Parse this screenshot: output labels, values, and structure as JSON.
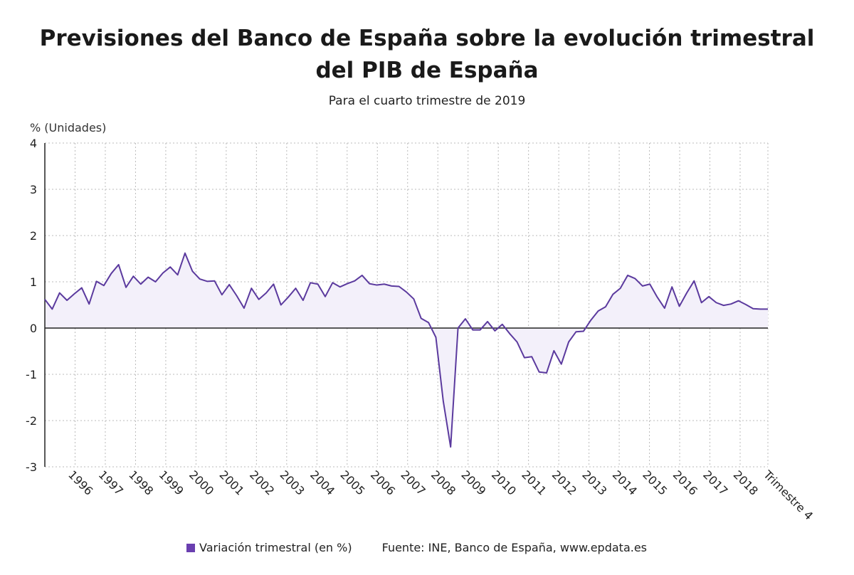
{
  "title": "Previsiones del Banco de España sobre la evolución trimestral del PIB de España",
  "subtitle": "Para el cuarto trimestre de 2019",
  "source": "Fuente: INE, Banco de España, www.epdata.es",
  "colors": {
    "line": "#5b3a9e",
    "fill": "#f3f0fa",
    "axis": "#222222",
    "grid": "#bbbbbb"
  },
  "chart_data": {
    "type": "area",
    "title": "Previsiones del Banco de España sobre la evolución trimestral del PIB de España",
    "subtitle": "Para el cuarto trimestre de 2019",
    "ylabel": "% (Unidades)",
    "xlabel": "",
    "ylim": [
      -3,
      4
    ],
    "yticks": [
      -3,
      -2,
      -1,
      0,
      1,
      2,
      3,
      4
    ],
    "grid": true,
    "legend_position": "bottom",
    "x_tick_labels": [
      "1996",
      "1997",
      "1998",
      "1999",
      "2000",
      "2001",
      "2002",
      "2003",
      "2004",
      "2005",
      "2006",
      "2007",
      "2008",
      "2009",
      "2010",
      "2011",
      "2012",
      "2013",
      "2014",
      "2015",
      "2016",
      "2017",
      "2018",
      "Trimestre 4"
    ],
    "series": [
      {
        "name": "Variación trimestral (en %)",
        "values": [
          0.62,
          0.41,
          0.76,
          0.6,
          0.74,
          0.87,
          0.52,
          1.01,
          0.92,
          1.18,
          1.37,
          0.88,
          1.12,
          0.95,
          1.1,
          1.0,
          1.19,
          1.32,
          1.15,
          1.62,
          1.23,
          1.06,
          1.01,
          1.02,
          0.72,
          0.94,
          0.7,
          0.43,
          0.86,
          0.62,
          0.76,
          0.95,
          0.5,
          0.67,
          0.86,
          0.6,
          0.98,
          0.95,
          0.68,
          0.98,
          0.89,
          0.96,
          1.02,
          1.14,
          0.96,
          0.93,
          0.95,
          0.91,
          0.9,
          0.78,
          0.63,
          0.21,
          0.12,
          -0.2,
          -1.58,
          -2.57,
          0.0,
          0.2,
          -0.04,
          -0.04,
          0.14,
          -0.06,
          0.08,
          -0.12,
          -0.3,
          -0.64,
          -0.62,
          -0.95,
          -0.97,
          -0.49,
          -0.78,
          -0.3,
          -0.08,
          -0.07,
          0.17,
          0.37,
          0.46,
          0.73,
          0.86,
          1.14,
          1.07,
          0.91,
          0.95,
          0.67,
          0.43,
          0.89,
          0.47,
          0.76,
          1.02,
          0.55,
          0.68,
          0.55,
          0.49,
          0.52,
          0.59,
          0.51,
          0.42,
          0.41,
          0.41
        ]
      }
    ]
  }
}
